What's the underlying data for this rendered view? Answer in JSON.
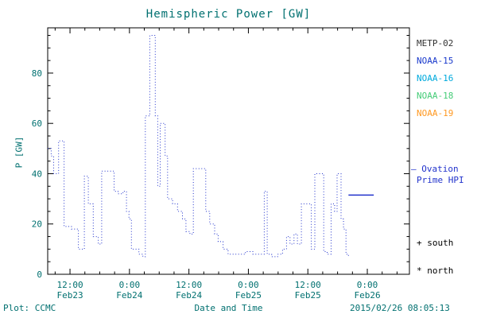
{
  "title": "Hemispheric Power [GW]",
  "colors": {
    "text_teal": "#007070",
    "line_blue": "#2233cc",
    "axis_black": "#000000",
    "background": "#ffffff"
  },
  "legend": {
    "satellites": [
      {
        "label": "METP-02",
        "color": "#333333"
      },
      {
        "label": "NOAA-15",
        "color": "#1a3acc"
      },
      {
        "label": "NOAA-16",
        "color": "#00aadd"
      },
      {
        "label": "NOAA-18",
        "color": "#44cc77"
      },
      {
        "label": "NOAA-19",
        "color": "#ff9922"
      }
    ],
    "ovation_line1": "— Ovation",
    "ovation_line2": "Prime HPI",
    "ovation_color": "#2233cc",
    "south_label": "+ south",
    "north_label": "* north"
  },
  "footer": {
    "plot_credit": "Plot: CCMC",
    "timestamp": "2015/02/26 08:05:13"
  },
  "chart_data": {
    "type": "line",
    "title": "Hemispheric Power [GW]",
    "xlabel": "Date and Time",
    "ylabel": "P [GW]",
    "line_style": "dotted-step",
    "line_color": "#2233cc",
    "legend_position": "right",
    "grid": false,
    "xlim_hours_from_feb23_0000": [
      7.5,
      80.5
    ],
    "ylim": [
      0,
      98
    ],
    "x_ticks": [
      {
        "t": 12,
        "time": "12:00",
        "date": "Feb23"
      },
      {
        "t": 24,
        "time": "0:00",
        "date": "Feb24"
      },
      {
        "t": 36,
        "time": "12:00",
        "date": "Feb24"
      },
      {
        "t": 48,
        "time": "0:00",
        "date": "Feb25"
      },
      {
        "t": 60,
        "time": "12:00",
        "date": "Feb25"
      },
      {
        "t": 72,
        "time": "0:00",
        "date": "Feb26"
      }
    ],
    "x_minor_step_hours": 3,
    "y_ticks": [
      0,
      20,
      40,
      60,
      80
    ],
    "y_minor_step": 5,
    "series": {
      "name": "Ovation Prime HPI",
      "units": "GW",
      "points": [
        [
          7.5,
          50
        ],
        [
          8.2,
          47
        ],
        [
          8.7,
          40
        ],
        [
          9.7,
          53
        ],
        [
          10.8,
          19
        ],
        [
          12.3,
          18
        ],
        [
          13.7,
          10
        ],
        [
          14.9,
          39
        ],
        [
          15.7,
          28
        ],
        [
          16.7,
          15
        ],
        [
          17.7,
          12
        ],
        [
          18.4,
          41
        ],
        [
          20.2,
          41
        ],
        [
          20.9,
          33
        ],
        [
          21.7,
          32
        ],
        [
          22.7,
          33
        ],
        [
          23.4,
          25
        ],
        [
          23.9,
          22
        ],
        [
          24.4,
          10
        ],
        [
          25.9,
          8
        ],
        [
          26.7,
          7
        ],
        [
          27.2,
          63
        ],
        [
          28.1,
          95
        ],
        [
          29.2,
          63
        ],
        [
          29.7,
          35
        ],
        [
          30.2,
          60
        ],
        [
          31.2,
          47
        ],
        [
          31.7,
          30
        ],
        [
          32.7,
          28
        ],
        [
          33.7,
          25
        ],
        [
          34.7,
          22
        ],
        [
          35.4,
          17
        ],
        [
          36.2,
          16
        ],
        [
          36.9,
          42
        ],
        [
          38.7,
          42
        ],
        [
          39.4,
          25
        ],
        [
          40.2,
          20
        ],
        [
          41.2,
          16
        ],
        [
          41.9,
          13
        ],
        [
          42.9,
          10
        ],
        [
          43.9,
          8
        ],
        [
          45.9,
          8
        ],
        [
          47.4,
          9
        ],
        [
          48.9,
          8
        ],
        [
          50.4,
          8
        ],
        [
          51.2,
          33
        ],
        [
          51.8,
          8
        ],
        [
          52.7,
          7
        ],
        [
          53.9,
          8
        ],
        [
          54.9,
          10
        ],
        [
          55.7,
          15
        ],
        [
          56.4,
          12
        ],
        [
          57.2,
          16
        ],
        [
          57.9,
          12
        ],
        [
          58.7,
          28
        ],
        [
          59.9,
          28
        ],
        [
          60.7,
          10
        ],
        [
          61.4,
          40
        ],
        [
          62.7,
          40
        ],
        [
          63.2,
          9
        ],
        [
          63.9,
          8
        ],
        [
          64.7,
          28
        ],
        [
          65.4,
          25
        ],
        [
          65.9,
          40
        ],
        [
          66.7,
          22
        ],
        [
          67.2,
          18
        ],
        [
          67.7,
          8
        ],
        [
          68.2,
          7
        ]
      ]
    },
    "latest_segment": {
      "t_start": 68.2,
      "t_end": 73.3,
      "value": 31.5
    }
  }
}
